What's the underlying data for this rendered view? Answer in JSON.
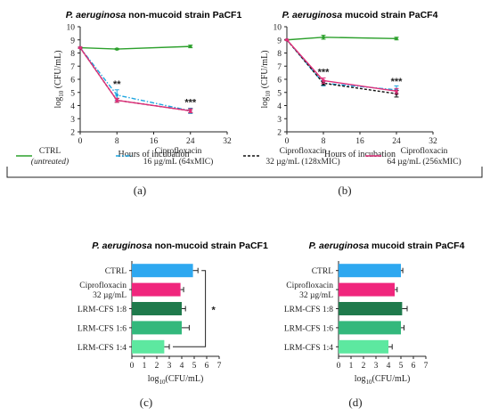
{
  "chart_data": [
    {
      "panel": "(a)",
      "type": "line",
      "title_italic": "P. aeruginosa",
      "title_rest": " non-mucoid strain PaCF1",
      "xlabel": "Hours of incubation",
      "ylabel": "log10 (CFU/mL)",
      "ylabel_main": "log",
      "ylabel_sub": "10",
      "ylabel_tail": " (CFU/mL)",
      "xlim": [
        0,
        32
      ],
      "ylim": [
        2,
        10
      ],
      "xticks": [
        "0",
        "8",
        "16",
        "24",
        "32"
      ],
      "yticks": [
        "2",
        "3",
        "4",
        "5",
        "6",
        "7",
        "8",
        "9",
        "10"
      ],
      "x": [
        0,
        8,
        24
      ],
      "series": [
        {
          "key": "ctrl",
          "values": [
            8.4,
            8.3,
            8.5
          ],
          "errors": [
            0.05,
            0.05,
            0.1
          ],
          "color": "#2ca02c",
          "dash": ""
        },
        {
          "key": "cipro16",
          "values": [
            8.4,
            4.8,
            3.6
          ],
          "errors": [
            0.05,
            0.4,
            0.2
          ],
          "color": "#1fa6e0",
          "dash": "5,2,1.5,2"
        },
        {
          "key": "cipro32",
          "values": [
            8.4,
            4.4,
            3.6
          ],
          "errors": [
            0.05,
            0.15,
            0.15
          ],
          "color": "#111111",
          "dash": "3,2"
        },
        {
          "key": "cipro64",
          "values": [
            8.4,
            4.4,
            3.6
          ],
          "errors": [
            0.05,
            0.15,
            0.15
          ],
          "color": "#e0307a",
          "dash": ""
        }
      ],
      "annotations": [
        {
          "x": 8,
          "y": 5.4,
          "text": "**"
        },
        {
          "x": 24,
          "y": 4.0,
          "text": "***"
        }
      ]
    },
    {
      "panel": "(b)",
      "type": "line",
      "title_italic": "P. aeruginosa",
      "title_rest": " mucoid strain PaCF4",
      "xlabel": "Hours of incubation",
      "ylabel": "log10 (CFU/mL)",
      "ylabel_main": "log",
      "ylabel_sub": "10",
      "ylabel_tail": " (CFU/mL)",
      "xlim": [
        0,
        32
      ],
      "ylim": [
        2,
        10
      ],
      "xticks": [
        "0",
        "8",
        "16",
        "24",
        "32"
      ],
      "yticks": [
        "2",
        "3",
        "4",
        "5",
        "6",
        "7",
        "8",
        "9",
        "10"
      ],
      "x": [
        0,
        8,
        24
      ],
      "series": [
        {
          "key": "ctrl",
          "values": [
            9.0,
            9.2,
            9.1
          ],
          "errors": [
            0.05,
            0.15,
            0.1
          ],
          "color": "#2ca02c",
          "dash": ""
        },
        {
          "key": "cipro16",
          "values": [
            9.0,
            5.7,
            5.2
          ],
          "errors": [
            0.05,
            0.2,
            0.3
          ],
          "color": "#1fa6e0",
          "dash": "5,2,1.5,2"
        },
        {
          "key": "cipro32",
          "values": [
            9.0,
            5.7,
            4.9
          ],
          "errors": [
            0.05,
            0.15,
            0.25
          ],
          "color": "#111111",
          "dash": "3,2"
        },
        {
          "key": "cipro64",
          "values": [
            9.0,
            5.9,
            5.1
          ],
          "errors": [
            0.05,
            0.2,
            0.2
          ],
          "color": "#e0307a",
          "dash": ""
        }
      ],
      "annotations": [
        {
          "x": 8,
          "y": 6.3,
          "text": "***"
        },
        {
          "x": 24,
          "y": 5.6,
          "text": "***"
        }
      ]
    },
    {
      "panel": "(c)",
      "type": "bar",
      "orientation": "horizontal",
      "title_italic": "P. aeruginosa",
      "title_rest": " non-mucoid strain PaCF1",
      "xlabel": "log10(CFU/mL)",
      "xlabel_main": "log",
      "xlabel_sub": "10",
      "xlabel_tail": "(CFU/mL)",
      "xlim": [
        0,
        7
      ],
      "xticks": [
        "0",
        "1",
        "2",
        "3",
        "4",
        "5",
        "6",
        "7"
      ],
      "categories": [
        [
          "CTRL"
        ],
        [
          "Ciprofloxacin",
          "32 µg/mL"
        ],
        [
          "LRM-CFS 1:8"
        ],
        [
          "LRM-CFS 1:6"
        ],
        [
          "LRM-CFS 1:4"
        ]
      ],
      "values": [
        4.9,
        3.9,
        4.0,
        4.0,
        2.6
      ],
      "errors": [
        0.4,
        0.25,
        0.3,
        0.6,
        0.4
      ],
      "colors": [
        "#2ea8f0",
        "#f0267d",
        "#1f7a4c",
        "#33b87c",
        "#5de8a0"
      ],
      "significance": {
        "from": 0,
        "to": 4,
        "x": 5.9,
        "text": "*"
      }
    },
    {
      "panel": "(d)",
      "type": "bar",
      "orientation": "horizontal",
      "title_italic": "P. aeruginosa",
      "title_rest": " mucoid strain PaCF4",
      "xlabel": "log10(CFU/mL)",
      "xlabel_main": "log",
      "xlabel_sub": "10",
      "xlabel_tail": "(CFU/mL)",
      "xlim": [
        0,
        7
      ],
      "xticks": [
        "0",
        "1",
        "2",
        "3",
        "4",
        "5",
        "6",
        "7"
      ],
      "categories": [
        [
          "CTRL"
        ],
        [
          "Ciprofloxacin",
          "32 µg/mL"
        ],
        [
          "LRM-CFS 1:8"
        ],
        [
          "LRM-CFS 1:6"
        ],
        [
          "LRM-CFS 1:4"
        ]
      ],
      "values": [
        5.0,
        4.5,
        5.1,
        5.0,
        4.0
      ],
      "errors": [
        0.15,
        0.2,
        0.4,
        0.25,
        0.3
      ],
      "colors": [
        "#2ea8f0",
        "#f0267d",
        "#1f7a4c",
        "#33b87c",
        "#5de8a0"
      ]
    }
  ],
  "legend": {
    "items": [
      {
        "key": "ctrl",
        "line1": "CTRL",
        "line2": "(untreated)",
        "italic2": true
      },
      {
        "key": "cipro16",
        "line1": "Ciprofloxacin",
        "line2": "16 µg/mL (64xMIC)"
      },
      {
        "key": "cipro32",
        "line1": "Ciprofloxacin",
        "line2": "32 µg/mL (128xMIC)"
      },
      {
        "key": "cipro64",
        "line1": "Ciprofloxacin",
        "line2": "64 µg/mL  (256xMIC)"
      }
    ],
    "colors": {
      "ctrl": "#2ca02c",
      "cipro16": "#1fa6e0",
      "cipro32": "#111111",
      "cipro64": "#e0307a"
    },
    "dashes": {
      "ctrl": "",
      "cipro16": "5,2,1.5,2",
      "cipro32": "3,2",
      "cipro64": ""
    }
  }
}
